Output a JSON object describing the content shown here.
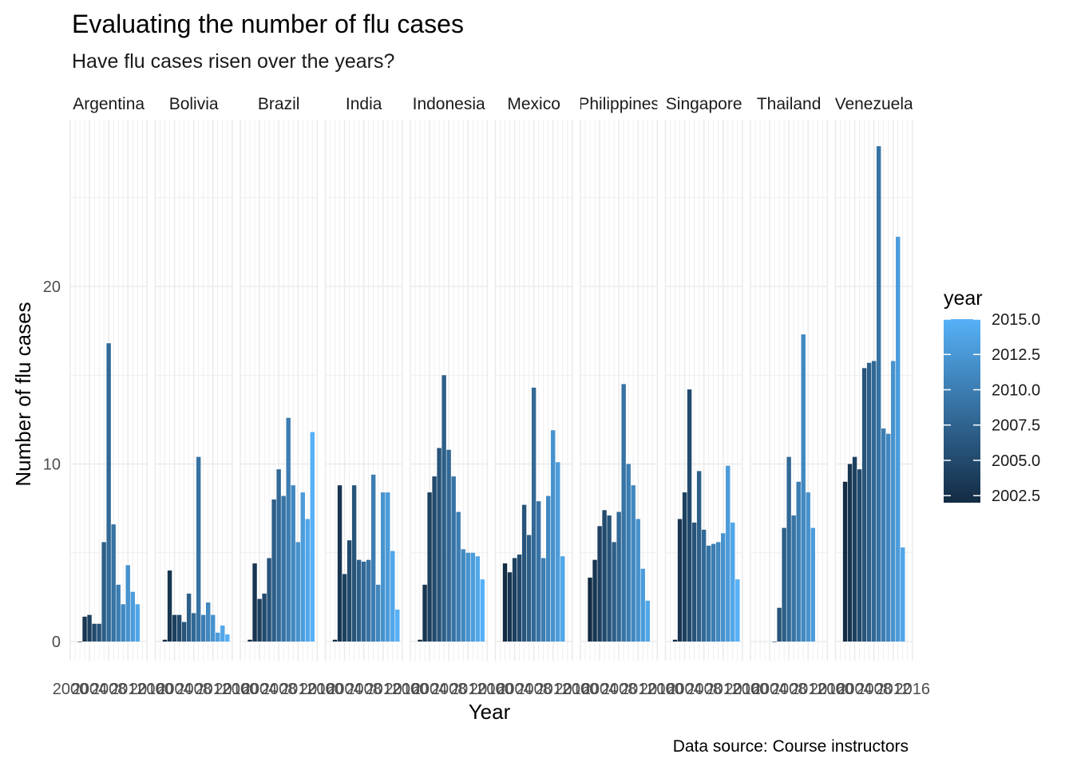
{
  "chart_data": {
    "type": "bar",
    "title": "Evaluating the number of flu cases",
    "subtitle": "Have flu cases risen over the years?",
    "xlabel": "Year",
    "ylabel": "Number of flu cases",
    "caption": "Data source: Course instructors",
    "ylim": [
      0,
      28.6
    ],
    "yticks": [
      0,
      10,
      20
    ],
    "xlim": [
      2000,
      2016
    ],
    "xticks": [
      2000,
      2004,
      2008,
      2012,
      2016
    ],
    "xtick_labels": [
      "2000",
      "2004",
      "2008",
      "2012",
      "2016"
    ],
    "years": [
      2002,
      2003,
      2004,
      2005,
      2006,
      2007,
      2008,
      2009,
      2010,
      2011,
      2012,
      2013,
      2014,
      2015
    ],
    "facets": [
      {
        "name": "Argentina",
        "values": [
          0,
          1.4,
          1.5,
          1.0,
          1.0,
          5.6,
          16.8,
          6.6,
          3.2,
          2.1,
          4.3,
          2.8,
          2.1,
          null
        ]
      },
      {
        "name": "Bolivia",
        "values": [
          0.1,
          4.0,
          1.5,
          1.5,
          1.1,
          2.7,
          1.6,
          10.4,
          1.5,
          2.2,
          1.5,
          0.5,
          0.9,
          0.4
        ]
      },
      {
        "name": "Brazil",
        "values": [
          0.1,
          4.4,
          2.4,
          2.7,
          4.7,
          8.0,
          9.7,
          8.2,
          12.6,
          8.8,
          5.6,
          8.4,
          6.9,
          11.8
        ]
      },
      {
        "name": "India",
        "values": [
          0.1,
          8.8,
          3.8,
          5.7,
          8.8,
          4.6,
          4.5,
          4.6,
          9.4,
          3.2,
          8.4,
          8.4,
          5.1,
          1.8
        ]
      },
      {
        "name": "Indonesia",
        "values": [
          0.1,
          3.2,
          8.4,
          9.3,
          10.9,
          15.0,
          10.8,
          9.3,
          7.3,
          5.2,
          5.0,
          5.0,
          4.8,
          3.5
        ]
      },
      {
        "name": "Mexico",
        "values": [
          4.4,
          3.9,
          4.7,
          4.9,
          7.7,
          6.0,
          14.3,
          7.9,
          4.7,
          8.2,
          11.9,
          10.1,
          4.8,
          null
        ]
      },
      {
        "name": "Philippines",
        "values": [
          3.6,
          4.6,
          6.5,
          7.4,
          7.1,
          5.6,
          7.3,
          14.5,
          10.0,
          8.8,
          6.9,
          4.1,
          2.3,
          null
        ]
      },
      {
        "name": "Singapore",
        "values": [
          0.1,
          6.9,
          8.4,
          14.2,
          6.7,
          9.6,
          6.3,
          5.4,
          5.5,
          5.6,
          6.1,
          9.9,
          6.7,
          3.5
        ]
      },
      {
        "name": "Thailand",
        "values": [
          null,
          null,
          null,
          0,
          1.9,
          6.4,
          10.4,
          7.1,
          9.0,
          17.3,
          8.4,
          6.4,
          null,
          null
        ]
      },
      {
        "name": "Venezuela",
        "values": [
          9.0,
          10.0,
          10.4,
          9.7,
          15.4,
          15.7,
          15.8,
          27.9,
          12.0,
          11.7,
          15.8,
          22.8,
          5.3,
          null
        ]
      }
    ],
    "fill_scale": {
      "low_color": "#132B43",
      "high_color": "#56B1F7",
      "low_value": 2002,
      "high_value": 2015
    },
    "legend": {
      "title": "year",
      "placement": "right",
      "breaks": [
        "2015.0",
        "2012.5",
        "2010.0",
        "2007.5",
        "2005.0",
        "2002.5"
      ],
      "break_values": [
        2015,
        2012.5,
        2010,
        2007.5,
        2005,
        2002.5
      ]
    },
    "grid": true
  }
}
